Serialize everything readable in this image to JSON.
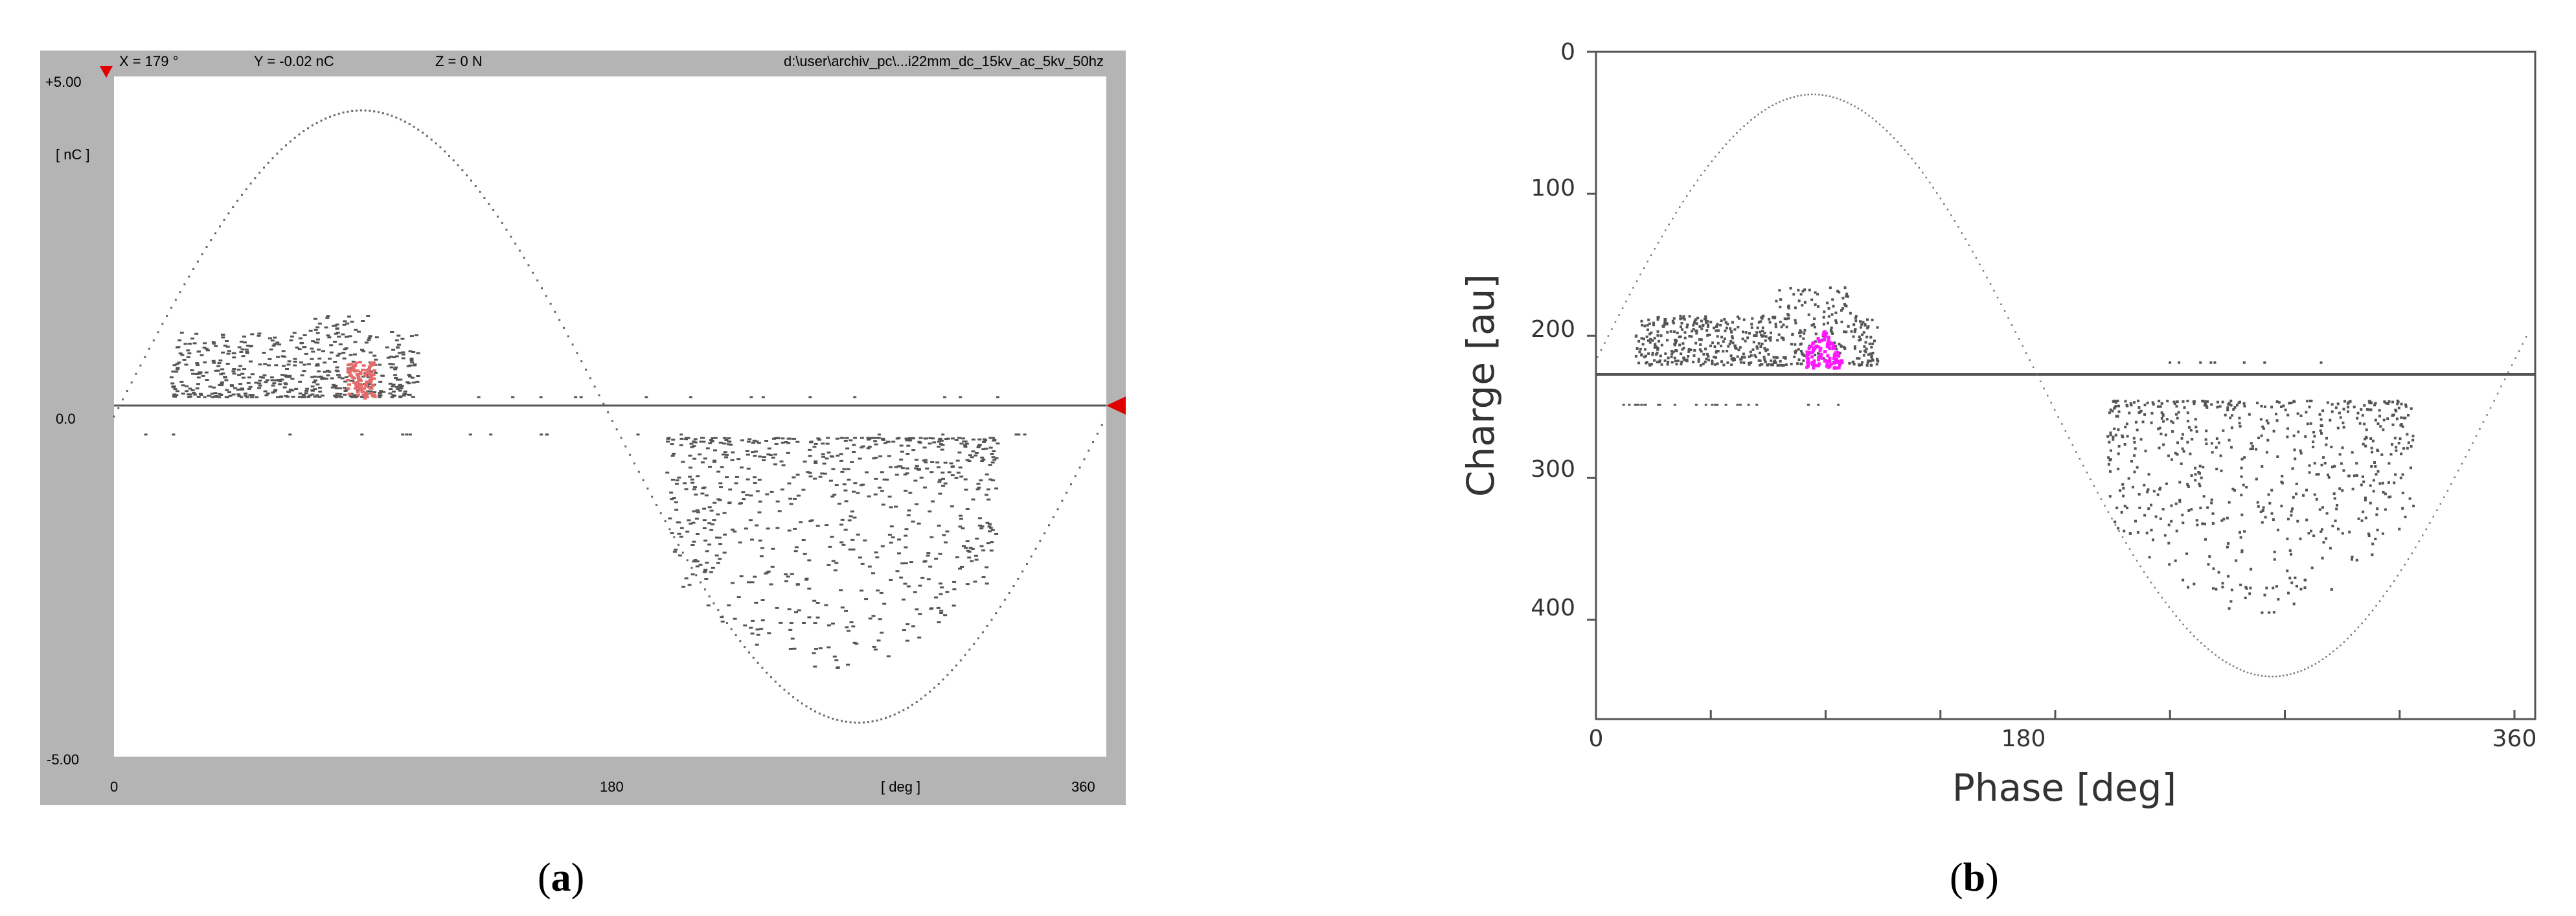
{
  "panel_a": {
    "caption_open": "(",
    "caption_letter": "a",
    "caption_close": ")",
    "readout_x": "X = 179 °",
    "readout_y": "Y = -0.02 nC",
    "readout_z": "Z =   0 N",
    "file_path": "d:\\user\\archiv_pc\\...i22mm_dc_15kv_ac_5kv_50hz",
    "colors": {
      "frame": "#b4b4b4",
      "points": "#555555",
      "hot_cluster": "#e56b6b",
      "marker": "#e00000"
    }
  },
  "panel_b": {
    "caption_open": "(",
    "caption_letter": "b",
    "caption_close": ")",
    "colors": {
      "points": "#555555",
      "hot_cluster": "#ff19ff"
    }
  },
  "chart_data": [
    {
      "type": "scatter",
      "title": "",
      "xlabel": "",
      "ylabel": "",
      "x_unit_label": "[ deg ]",
      "y_unit_label": "[ nC ]",
      "x_tick_labels": [
        "0",
        "180",
        "360"
      ],
      "y_tick_labels": [
        "+5.00",
        "0.0",
        "-5.00"
      ],
      "xlim": [
        0,
        360
      ],
      "ylim": [
        -5,
        5
      ],
      "grid": false,
      "series": [
        {
          "kind": "sinusoid",
          "amplitude": 4.5,
          "phase_offset_deg": 0,
          "period_deg": 360
        },
        {
          "kind": "baseline",
          "y": 0
        },
        {
          "kind": "pd_cluster_positive",
          "x_range": [
            20,
            110
          ],
          "y_range": [
            0.3,
            1.5
          ],
          "hot_center": [
            88,
            0.55
          ]
        },
        {
          "kind": "pd_cluster_negative",
          "x_range": [
            200,
            320
          ],
          "y_range": [
            -0.3,
            -3.7
          ]
        }
      ]
    },
    {
      "type": "scatter",
      "title": "",
      "xlabel": "Phase  [deg]",
      "ylabel": "Charge [au]",
      "x_tick_labels": [
        "0",
        "180",
        "360"
      ],
      "y_tick_labels": [
        "0",
        "100",
        "200",
        "300",
        "400"
      ],
      "xlim": [
        0,
        360
      ],
      "ylim": [
        470,
        0
      ],
      "grid": false,
      "series": [
        {
          "kind": "sinusoid",
          "center": 235,
          "amplitude": 205,
          "period_deg": 360
        },
        {
          "kind": "baseline",
          "y": 235
        },
        {
          "kind": "pd_cluster_positive",
          "x_range": [
            15,
            110
          ],
          "y_range": [
            170,
            220
          ],
          "hot_center": [
            88,
            212
          ]
        },
        {
          "kind": "pd_cluster_negative",
          "x_range": [
            200,
            320
          ],
          "y_range": [
            245,
            395
          ]
        }
      ]
    }
  ]
}
